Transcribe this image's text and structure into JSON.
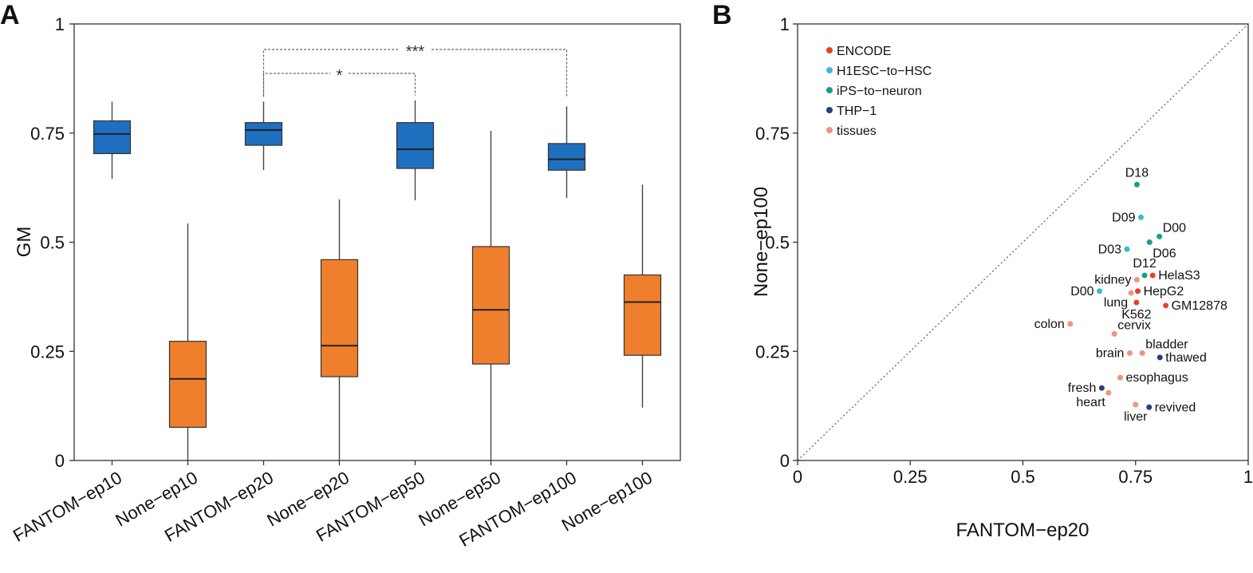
{
  "colors": {
    "fantom": "#1f6fbf",
    "none": "#ef7f2c",
    "encode": "#e8402b",
    "h1esc": "#3cb9d8",
    "ips": "#16a085",
    "thp1": "#283d7a",
    "tissues": "#f2937a"
  },
  "chart_data": [
    {
      "type": "box",
      "panel": "A",
      "ylabel": "GM",
      "ylim": [
        0,
        1
      ],
      "yticks": [
        0,
        0.25,
        0.5,
        0.75,
        1
      ],
      "ytick_labels": [
        "0",
        "0.25",
        "0.5",
        "0.75",
        "1"
      ],
      "categories": [
        "FANTOM−ep10",
        "None−ep10",
        "FANTOM−ep20",
        "None−ep20",
        "FANTOM−ep50",
        "None−ep50",
        "FANTOM−ep100",
        "None−ep100"
      ],
      "boxes": [
        {
          "label": "FANTOM−ep10",
          "group": "fantom",
          "whisker_low": 0.645,
          "q1": 0.703,
          "median": 0.748,
          "q3": 0.778,
          "whisker_high": 0.822
        },
        {
          "label": "None−ep10",
          "group": "none",
          "whisker_low": 0.0,
          "q1": 0.076,
          "median": 0.187,
          "q3": 0.273,
          "whisker_high": 0.543
        },
        {
          "label": "FANTOM−ep20",
          "group": "fantom",
          "whisker_low": 0.665,
          "q1": 0.722,
          "median": 0.757,
          "q3": 0.774,
          "whisker_high": 0.822
        },
        {
          "label": "None−ep20",
          "group": "none",
          "whisker_low": 0.0,
          "q1": 0.192,
          "median": 0.263,
          "q3": 0.46,
          "whisker_high": 0.598
        },
        {
          "label": "FANTOM−ep50",
          "group": "fantom",
          "whisker_low": 0.596,
          "q1": 0.669,
          "median": 0.713,
          "q3": 0.774,
          "whisker_high": 0.825
        },
        {
          "label": "None−ep50",
          "group": "none",
          "whisker_low": 0.0,
          "q1": 0.221,
          "median": 0.345,
          "q3": 0.49,
          "whisker_high": 0.755
        },
        {
          "label": "FANTOM−ep100",
          "group": "fantom",
          "whisker_low": 0.601,
          "q1": 0.665,
          "median": 0.69,
          "q3": 0.726,
          "whisker_high": 0.811
        },
        {
          "label": "None−ep100",
          "group": "none",
          "whisker_low": 0.121,
          "q1": 0.241,
          "median": 0.363,
          "q3": 0.425,
          "whisker_high": 0.632
        }
      ],
      "significance": [
        {
          "from": "FANTOM−ep20",
          "to": "FANTOM−ep50",
          "label": "*"
        },
        {
          "from": "FANTOM−ep20",
          "to": "FANTOM−ep100",
          "label": "***"
        }
      ]
    },
    {
      "type": "scatter",
      "panel": "B",
      "xlabel": "FANTOM−ep20",
      "ylabel": "None−ep100",
      "xlim": [
        0,
        1
      ],
      "ylim": [
        0,
        1
      ],
      "xticks": [
        0,
        0.25,
        0.5,
        0.75,
        1
      ],
      "xtick_labels": [
        "0",
        "0.25",
        "0.5",
        "0.75",
        "1"
      ],
      "yticks": [
        0,
        0.25,
        0.5,
        0.75,
        1
      ],
      "ytick_labels": [
        "0",
        "0.25",
        "0.5",
        "0.75",
        "1"
      ],
      "diagonal": true,
      "legend": [
        {
          "label": "ENCODE",
          "group": "encode"
        },
        {
          "label": "H1ESC−to−HSC",
          "group": "h1esc"
        },
        {
          "label": "iPS−to−neuron",
          "group": "ips"
        },
        {
          "label": "THP−1",
          "group": "thp1"
        },
        {
          "label": "tissues",
          "group": "tissues"
        }
      ],
      "points": [
        {
          "label": "D18",
          "group": "ips",
          "x": 0.753,
          "y": 0.632,
          "pos": "above"
        },
        {
          "label": "D09",
          "group": "h1esc",
          "x": 0.762,
          "y": 0.557,
          "pos": "left"
        },
        {
          "label": "D00",
          "group": "ips",
          "x": 0.803,
          "y": 0.513,
          "pos": "above-right"
        },
        {
          "label": "D06",
          "group": "ips",
          "x": 0.781,
          "y": 0.5,
          "pos": "below-right"
        },
        {
          "label": "D03",
          "group": "h1esc",
          "x": 0.731,
          "y": 0.484,
          "pos": "left"
        },
        {
          "label": "D12",
          "group": "ips",
          "x": 0.77,
          "y": 0.424,
          "pos": "above"
        },
        {
          "label": "HelaS3",
          "group": "encode",
          "x": 0.788,
          "y": 0.424,
          "pos": "right"
        },
        {
          "label": "kidney",
          "group": "tissues",
          "x": 0.753,
          "y": 0.414,
          "pos": "left"
        },
        {
          "label": "HepG2",
          "group": "encode",
          "x": 0.755,
          "y": 0.388,
          "pos": "right"
        },
        {
          "label": "D00",
          "group": "h1esc",
          "x": 0.67,
          "y": 0.388,
          "pos": "left"
        },
        {
          "label": "lung",
          "group": "tissues",
          "x": 0.74,
          "y": 0.384,
          "pos": "below-left"
        },
        {
          "label": "K562",
          "group": "encode",
          "x": 0.752,
          "y": 0.362,
          "pos": "below"
        },
        {
          "label": "GM12878",
          "group": "encode",
          "x": 0.817,
          "y": 0.355,
          "pos": "right"
        },
        {
          "label": "colon",
          "group": "tissues",
          "x": 0.605,
          "y": 0.313,
          "pos": "left"
        },
        {
          "label": "cervix",
          "group": "tissues",
          "x": 0.703,
          "y": 0.29,
          "pos": "above-right"
        },
        {
          "label": "bladder",
          "group": "tissues",
          "x": 0.765,
          "y": 0.246,
          "pos": "above-right"
        },
        {
          "label": "brain",
          "group": "tissues",
          "x": 0.737,
          "y": 0.246,
          "pos": "left"
        },
        {
          "label": "thawed",
          "group": "thp1",
          "x": 0.804,
          "y": 0.236,
          "pos": "right"
        },
        {
          "label": "esophagus",
          "group": "tissues",
          "x": 0.716,
          "y": 0.19,
          "pos": "right"
        },
        {
          "label": "fresh",
          "group": "thp1",
          "x": 0.675,
          "y": 0.166,
          "pos": "left"
        },
        {
          "label": "heart",
          "group": "tissues",
          "x": 0.69,
          "y": 0.155,
          "pos": "below-left"
        },
        {
          "label": "liver",
          "group": "tissues",
          "x": 0.75,
          "y": 0.128,
          "pos": "below"
        },
        {
          "label": "revived",
          "group": "thp1",
          "x": 0.78,
          "y": 0.122,
          "pos": "right"
        }
      ]
    }
  ],
  "panel_labels": {
    "a": "A",
    "b": "B"
  }
}
